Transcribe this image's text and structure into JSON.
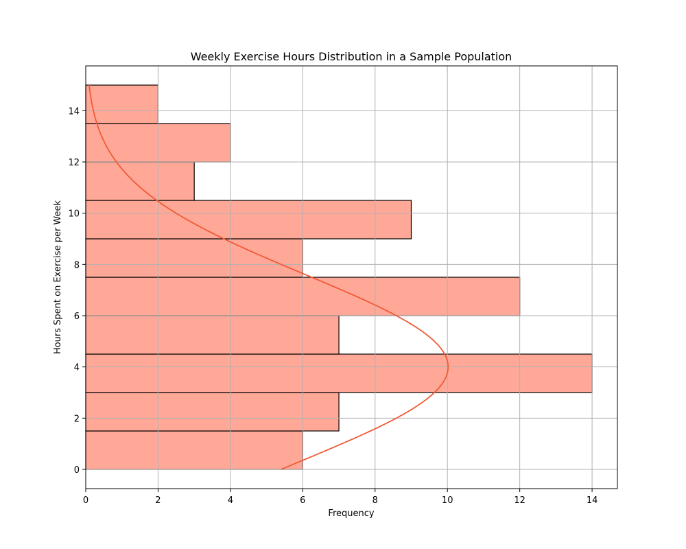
{
  "chart_data": {
    "type": "bar",
    "orientation": "horizontal",
    "title": "Weekly Exercise Hours Distribution in a Sample Population",
    "xlabel": "Frequency",
    "ylabel": "Hours Spent on Exercise per Week",
    "xlim": [
      0,
      14.7
    ],
    "ylim": [
      -0.75,
      15.75
    ],
    "x_ticks": [
      0,
      2,
      4,
      6,
      8,
      10,
      12,
      14
    ],
    "y_ticks": [
      0,
      2,
      4,
      6,
      8,
      10,
      12,
      14
    ],
    "grid": true,
    "bins": [
      {
        "start": 0.0,
        "end": 1.5,
        "count": 6
      },
      {
        "start": 1.5,
        "end": 3.0,
        "count": 7
      },
      {
        "start": 3.0,
        "end": 4.5,
        "count": 14
      },
      {
        "start": 4.5,
        "end": 6.0,
        "count": 7
      },
      {
        "start": 6.0,
        "end": 7.5,
        "count": 12
      },
      {
        "start": 7.5,
        "end": 9.0,
        "count": 6
      },
      {
        "start": 9.0,
        "end": 10.5,
        "count": 9
      },
      {
        "start": 10.5,
        "end": 12.0,
        "count": 3
      },
      {
        "start": 12.0,
        "end": 13.5,
        "count": 4
      },
      {
        "start": 13.5,
        "end": 15.0,
        "count": 2
      }
    ],
    "curve": {
      "type": "normal-density",
      "mean": 4.0,
      "std": 3.6,
      "peak": 10.02,
      "y_range": [
        0,
        15
      ],
      "color": "#f05a35"
    },
    "bar_color": "#ffa898",
    "edge_color": "#000000"
  }
}
